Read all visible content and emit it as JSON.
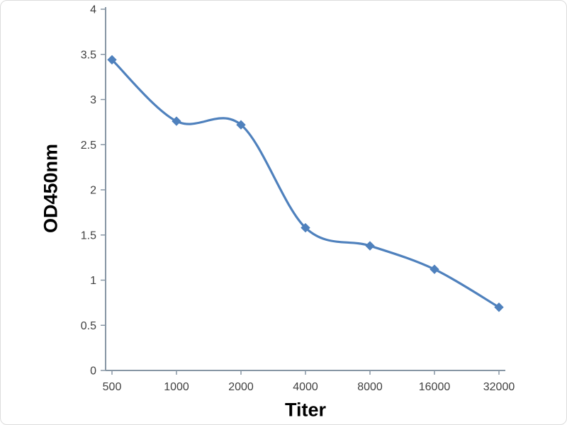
{
  "chart_data": {
    "type": "line",
    "categories": [
      "500",
      "1000",
      "2000",
      "4000",
      "8000",
      "16000",
      "32000"
    ],
    "values": [
      3.44,
      2.76,
      2.72,
      1.58,
      1.38,
      1.12,
      0.7
    ],
    "title": "",
    "xlabel": "Titer",
    "ylabel": "OD450nm",
    "ylim": [
      0,
      4
    ],
    "yticks": [
      "0",
      "0.5",
      "1",
      "1.5",
      "2",
      "2.5",
      "3",
      "3.5",
      "4"
    ],
    "line_color": "#4f81bd",
    "marker": "diamond",
    "axis_color": "#8796a4",
    "tick_label_color": "#3f3f3f",
    "grid": false,
    "legend": "none",
    "smooth": true
  }
}
